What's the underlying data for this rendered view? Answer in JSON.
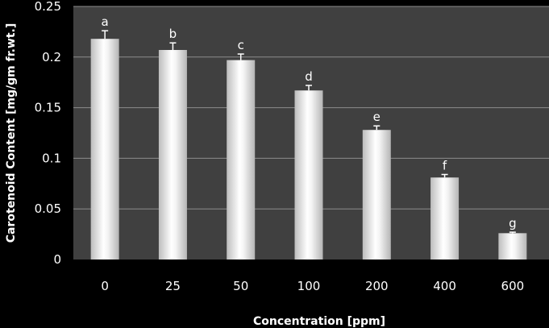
{
  "chart_data": {
    "type": "bar",
    "categories": [
      "0",
      "25",
      "50",
      "100",
      "200",
      "400",
      "600"
    ],
    "values": [
      0.218,
      0.207,
      0.197,
      0.167,
      0.128,
      0.081,
      0.026
    ],
    "error": [
      0.008,
      0.007,
      0.006,
      0.005,
      0.004,
      0.003,
      0.001
    ],
    "significance_labels": [
      "a",
      "b",
      "c",
      "d",
      "e",
      "f",
      "g"
    ],
    "xlabel": "Concentration [ppm]",
    "ylabel": "Carotenoid Content [mg/gm fr.wt.]",
    "ylim": [
      0,
      0.25
    ],
    "yticks": [
      0,
      0.05,
      0.1,
      0.15,
      0.2,
      0.25
    ],
    "ytick_labels": [
      "0",
      "0.05",
      "0.1",
      "0.15",
      "0.2",
      "0.25"
    ],
    "grid": true,
    "colors": {
      "page_background": "#000000",
      "plot_background": "#404040",
      "gridline": "#8c8c8c",
      "bar_light": "#ffffff",
      "bar_dark": "#b9b9b9",
      "text": "#ffffff"
    }
  }
}
